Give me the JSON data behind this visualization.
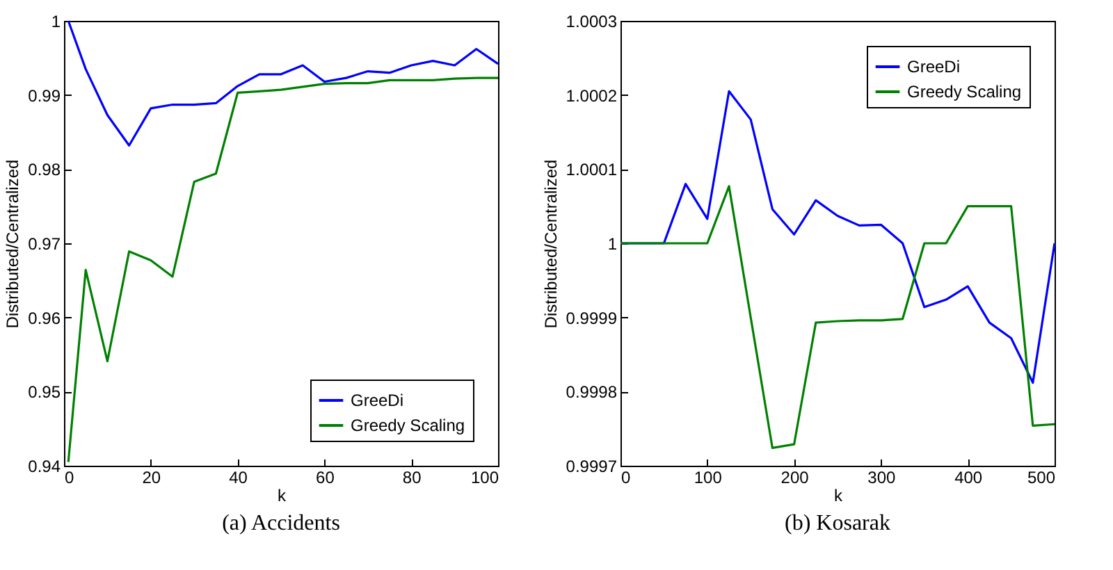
{
  "chart_data": [
    {
      "type": "line",
      "title": "(a) Accidents",
      "xlabel": "k",
      "ylabel": "Distributed/Centralized",
      "x": [
        1,
        5,
        10,
        15,
        20,
        25,
        30,
        35,
        40,
        45,
        50,
        55,
        60,
        65,
        70,
        75,
        80,
        85,
        90,
        95,
        100
      ],
      "xlim": [
        0,
        100
      ],
      "xticks": [
        0,
        20,
        40,
        60,
        80,
        100
      ],
      "ylim": [
        0.94,
        1
      ],
      "yticks": [
        0.94,
        0.95,
        0.96,
        0.97,
        0.98,
        0.99,
        1
      ],
      "legend": "bottom right",
      "series": [
        {
          "name": "GreeDi",
          "color": "#0000ff",
          "values": [
            1.0,
            0.9935,
            0.9873,
            0.9832,
            0.9882,
            0.9887,
            0.9887,
            0.9889,
            0.9912,
            0.9928,
            0.9928,
            0.994,
            0.9918,
            0.9923,
            0.9932,
            0.993,
            0.994,
            0.9946,
            0.994,
            0.9962,
            0.9942
          ]
        },
        {
          "name": "Greedy Scaling",
          "color": "#008000",
          "values": [
            0.9405,
            0.9664,
            0.9541,
            0.9689,
            0.9677,
            0.9655,
            0.9783,
            0.9794,
            0.9903,
            0.9905,
            0.9907,
            0.9911,
            0.9915,
            0.9916,
            0.9916,
            0.992,
            0.992,
            0.992,
            0.9922,
            0.9923,
            0.9923
          ]
        }
      ]
    },
    {
      "type": "line",
      "title": "(b) Kosarak",
      "xlabel": "k",
      "ylabel": "Distributed/Centralized",
      "x": [
        0,
        25,
        50,
        75,
        100,
        125,
        150,
        175,
        200,
        225,
        250,
        275,
        300,
        325,
        350,
        375,
        400,
        425,
        450,
        475,
        500
      ],
      "xlim": [
        0,
        500
      ],
      "xticks": [
        0,
        100,
        200,
        300,
        400,
        500
      ],
      "ylim": [
        0.9997,
        1.0003
      ],
      "yticks": [
        0.9997,
        0.9998,
        0.9999,
        1,
        1.0001,
        1.0002,
        1.0003
      ],
      "legend": "top right",
      "series": [
        {
          "name": "GreeDi",
          "color": "#0000ff",
          "values": [
            1,
            1,
            1,
            1.00008,
            1.000033,
            1.000205,
            1.000167,
            1.000046,
            1.000012,
            1.000058,
            1.000037,
            1.000024,
            1.000025,
            1,
            0.999914,
            0.999924,
            0.999942,
            0.999893,
            0.999872,
            0.999812,
            1
          ]
        },
        {
          "name": "Greedy Scaling",
          "color": "#008000",
          "values": [
            1,
            1,
            1,
            1,
            1,
            1.000077,
            0.9999,
            0.999724,
            0.999729,
            0.999893,
            0.999895,
            0.999896,
            0.999896,
            0.999898,
            1,
            1,
            1.00005,
            1.00005,
            1.00005,
            0.999754,
            0.999756
          ]
        }
      ]
    }
  ]
}
